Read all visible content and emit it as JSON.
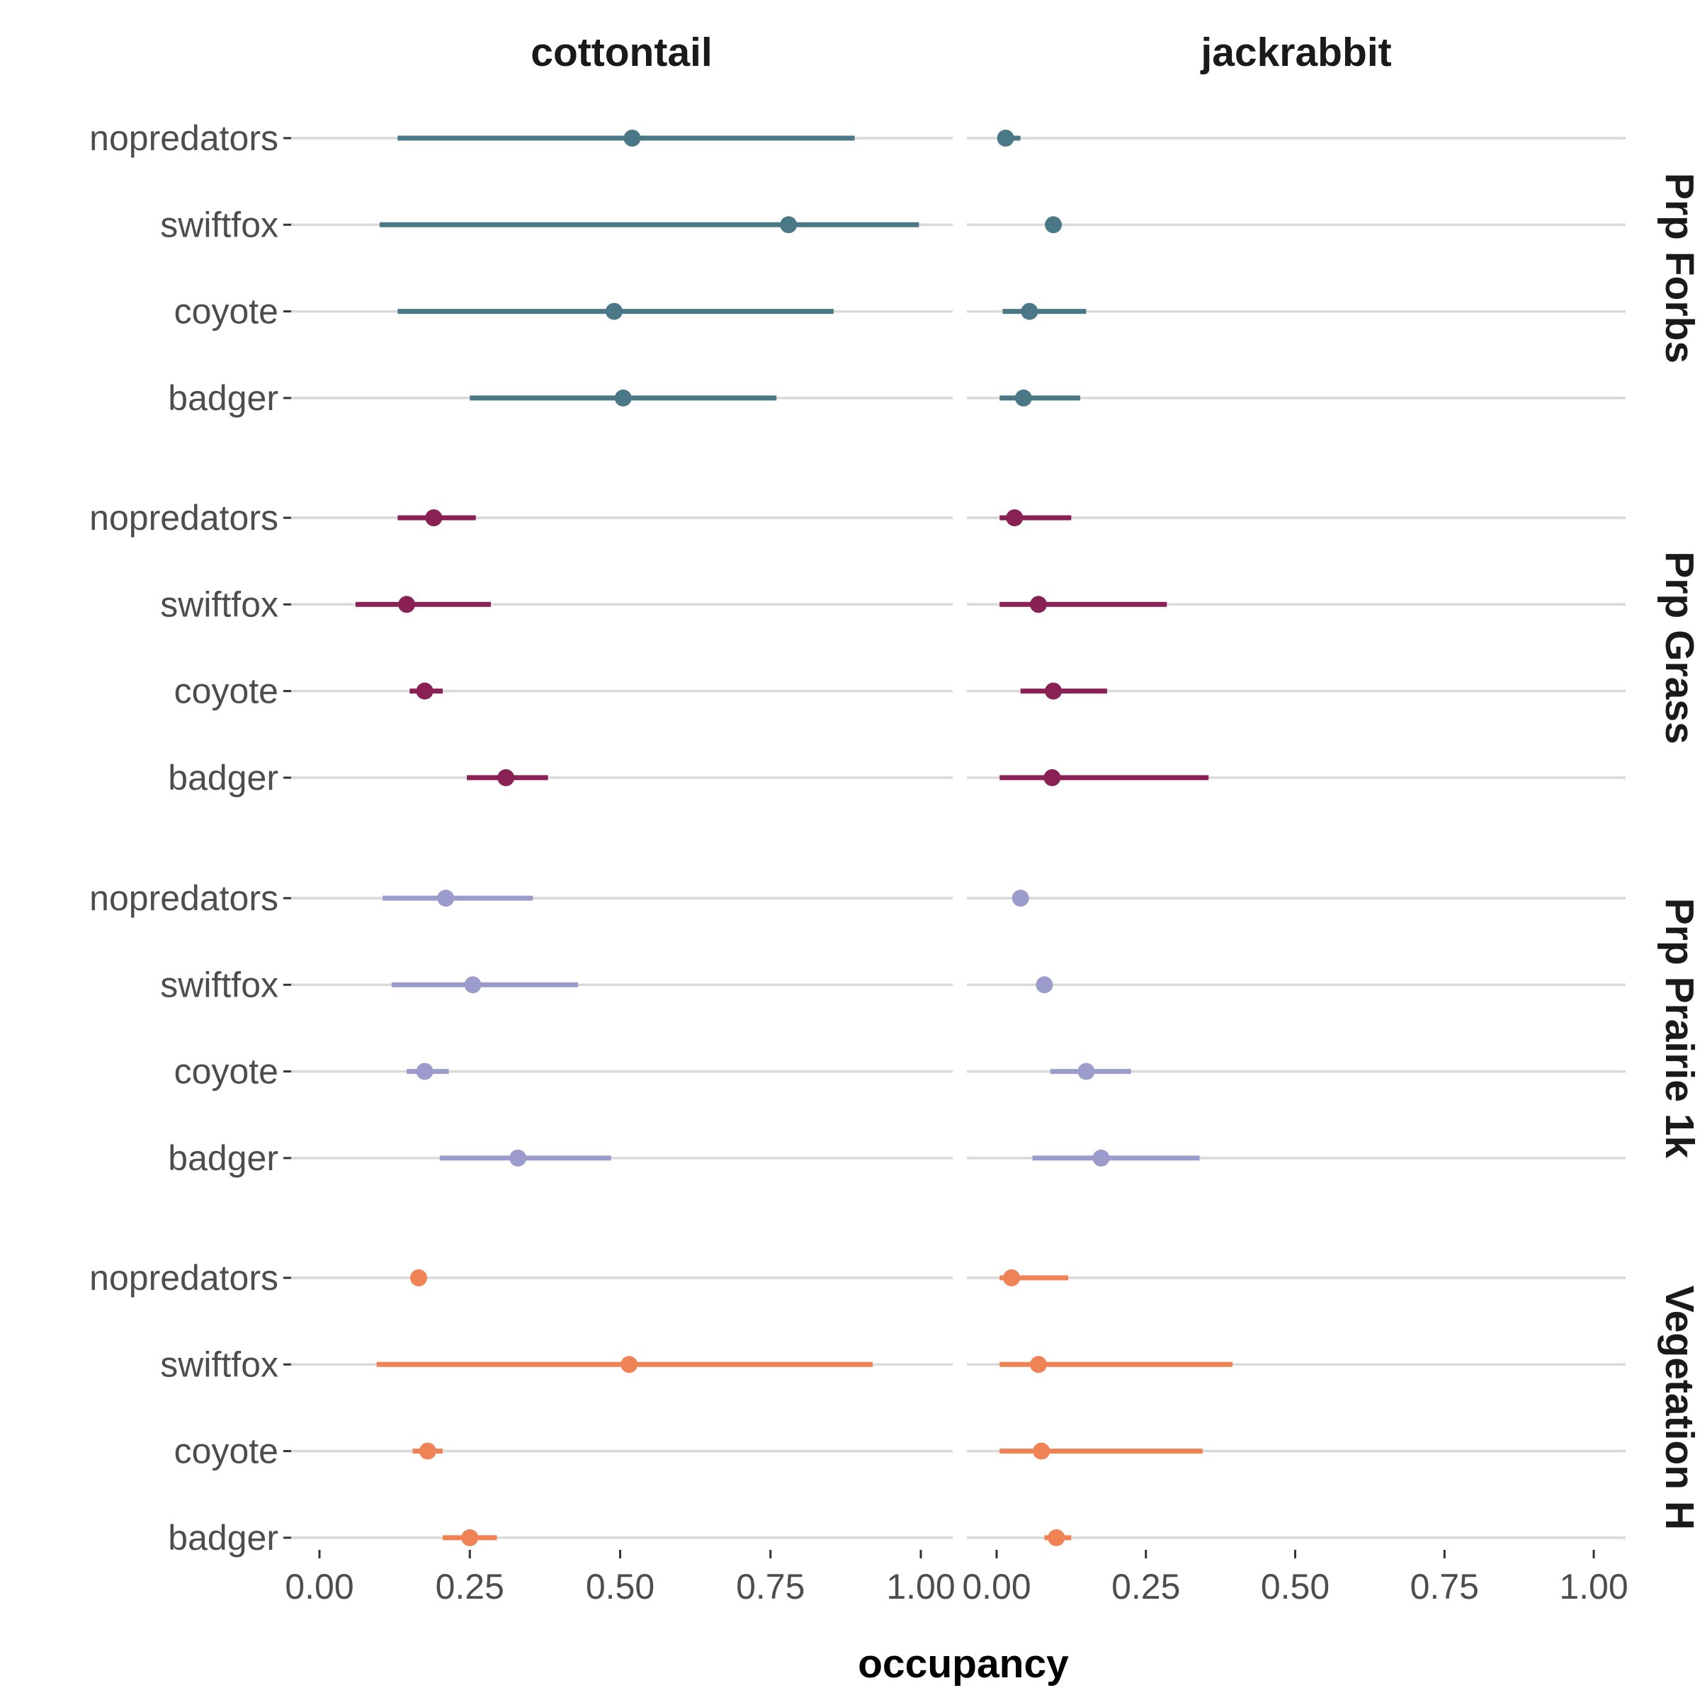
{
  "chart_data": {
    "type": "forest",
    "xlabel": "occupancy",
    "xlim": [
      0,
      1
    ],
    "x_ticks": [
      "0.00",
      "0.25",
      "0.50",
      "0.75",
      "1.00"
    ],
    "columns": [
      "cottontail",
      "jackrabbit"
    ],
    "rows": [
      "Prp Forbs",
      "Prp Grass",
      "Prp Prairie 1k",
      "Vegetation H"
    ],
    "row_colors": {
      "Prp Forbs": "#4a7886",
      "Prp Grass": "#8a2154",
      "Prp Prairie 1k": "#9b9ccb",
      "Vegetation H": "#ef8356"
    },
    "grid": true,
    "categories": [
      "nopredators",
      "swiftfox",
      "coyote",
      "badger"
    ],
    "panels": [
      {
        "column": "cottontail",
        "row": "Prp Forbs",
        "points": [
          {
            "category": "nopredators",
            "estimate": 0.52,
            "low": 0.13,
            "high": 0.89
          },
          {
            "category": "swiftfox",
            "estimate": 0.78,
            "low": 0.1,
            "high": 0.997
          },
          {
            "category": "coyote",
            "estimate": 0.49,
            "low": 0.13,
            "high": 0.855
          },
          {
            "category": "badger",
            "estimate": 0.505,
            "low": 0.25,
            "high": 0.76
          }
        ]
      },
      {
        "column": "jackrabbit",
        "row": "Prp Forbs",
        "points": [
          {
            "category": "nopredators",
            "estimate": 0.015,
            "low": 0.005,
            "high": 0.04
          },
          {
            "category": "swiftfox",
            "estimate": 0.095,
            "low": 0.093,
            "high": 0.097
          },
          {
            "category": "coyote",
            "estimate": 0.055,
            "low": 0.01,
            "high": 0.15
          },
          {
            "category": "badger",
            "estimate": 0.045,
            "low": 0.005,
            "high": 0.14
          }
        ]
      },
      {
        "column": "cottontail",
        "row": "Prp Grass",
        "points": [
          {
            "category": "nopredators",
            "estimate": 0.19,
            "low": 0.13,
            "high": 0.26
          },
          {
            "category": "swiftfox",
            "estimate": 0.145,
            "low": 0.06,
            "high": 0.285
          },
          {
            "category": "coyote",
            "estimate": 0.175,
            "low": 0.15,
            "high": 0.205
          },
          {
            "category": "badger",
            "estimate": 0.31,
            "low": 0.245,
            "high": 0.38
          }
        ]
      },
      {
        "column": "jackrabbit",
        "row": "Prp Grass",
        "points": [
          {
            "category": "nopredators",
            "estimate": 0.03,
            "low": 0.005,
            "high": 0.125
          },
          {
            "category": "swiftfox",
            "estimate": 0.07,
            "low": 0.005,
            "high": 0.285
          },
          {
            "category": "coyote",
            "estimate": 0.095,
            "low": 0.04,
            "high": 0.185
          },
          {
            "category": "badger",
            "estimate": 0.093,
            "low": 0.005,
            "high": 0.355
          }
        ]
      },
      {
        "column": "cottontail",
        "row": "Prp Prairie 1k",
        "points": [
          {
            "category": "nopredators",
            "estimate": 0.21,
            "low": 0.105,
            "high": 0.355
          },
          {
            "category": "swiftfox",
            "estimate": 0.255,
            "low": 0.12,
            "high": 0.43
          },
          {
            "category": "coyote",
            "estimate": 0.175,
            "low": 0.145,
            "high": 0.215
          },
          {
            "category": "badger",
            "estimate": 0.33,
            "low": 0.2,
            "high": 0.485
          }
        ]
      },
      {
        "column": "jackrabbit",
        "row": "Prp Prairie 1k",
        "points": [
          {
            "category": "nopredators",
            "estimate": 0.04,
            "low": 0.038,
            "high": 0.042
          },
          {
            "category": "swiftfox",
            "estimate": 0.08,
            "low": 0.078,
            "high": 0.082
          },
          {
            "category": "coyote",
            "estimate": 0.15,
            "low": 0.09,
            "high": 0.225
          },
          {
            "category": "badger",
            "estimate": 0.175,
            "low": 0.06,
            "high": 0.34
          }
        ]
      },
      {
        "column": "cottontail",
        "row": "Vegetation H",
        "points": [
          {
            "category": "nopredators",
            "estimate": 0.165,
            "low": 0.163,
            "high": 0.167
          },
          {
            "category": "swiftfox",
            "estimate": 0.515,
            "low": 0.095,
            "high": 0.92
          },
          {
            "category": "coyote",
            "estimate": 0.18,
            "low": 0.155,
            "high": 0.205
          },
          {
            "category": "badger",
            "estimate": 0.25,
            "low": 0.205,
            "high": 0.295
          }
        ]
      },
      {
        "column": "jackrabbit",
        "row": "Vegetation H",
        "points": [
          {
            "category": "nopredators",
            "estimate": 0.025,
            "low": 0.005,
            "high": 0.12
          },
          {
            "category": "swiftfox",
            "estimate": 0.07,
            "low": 0.005,
            "high": 0.395
          },
          {
            "category": "coyote",
            "estimate": 0.075,
            "low": 0.005,
            "high": 0.345
          },
          {
            "category": "badger",
            "estimate": 0.1,
            "low": 0.08,
            "high": 0.125
          }
        ]
      }
    ]
  }
}
